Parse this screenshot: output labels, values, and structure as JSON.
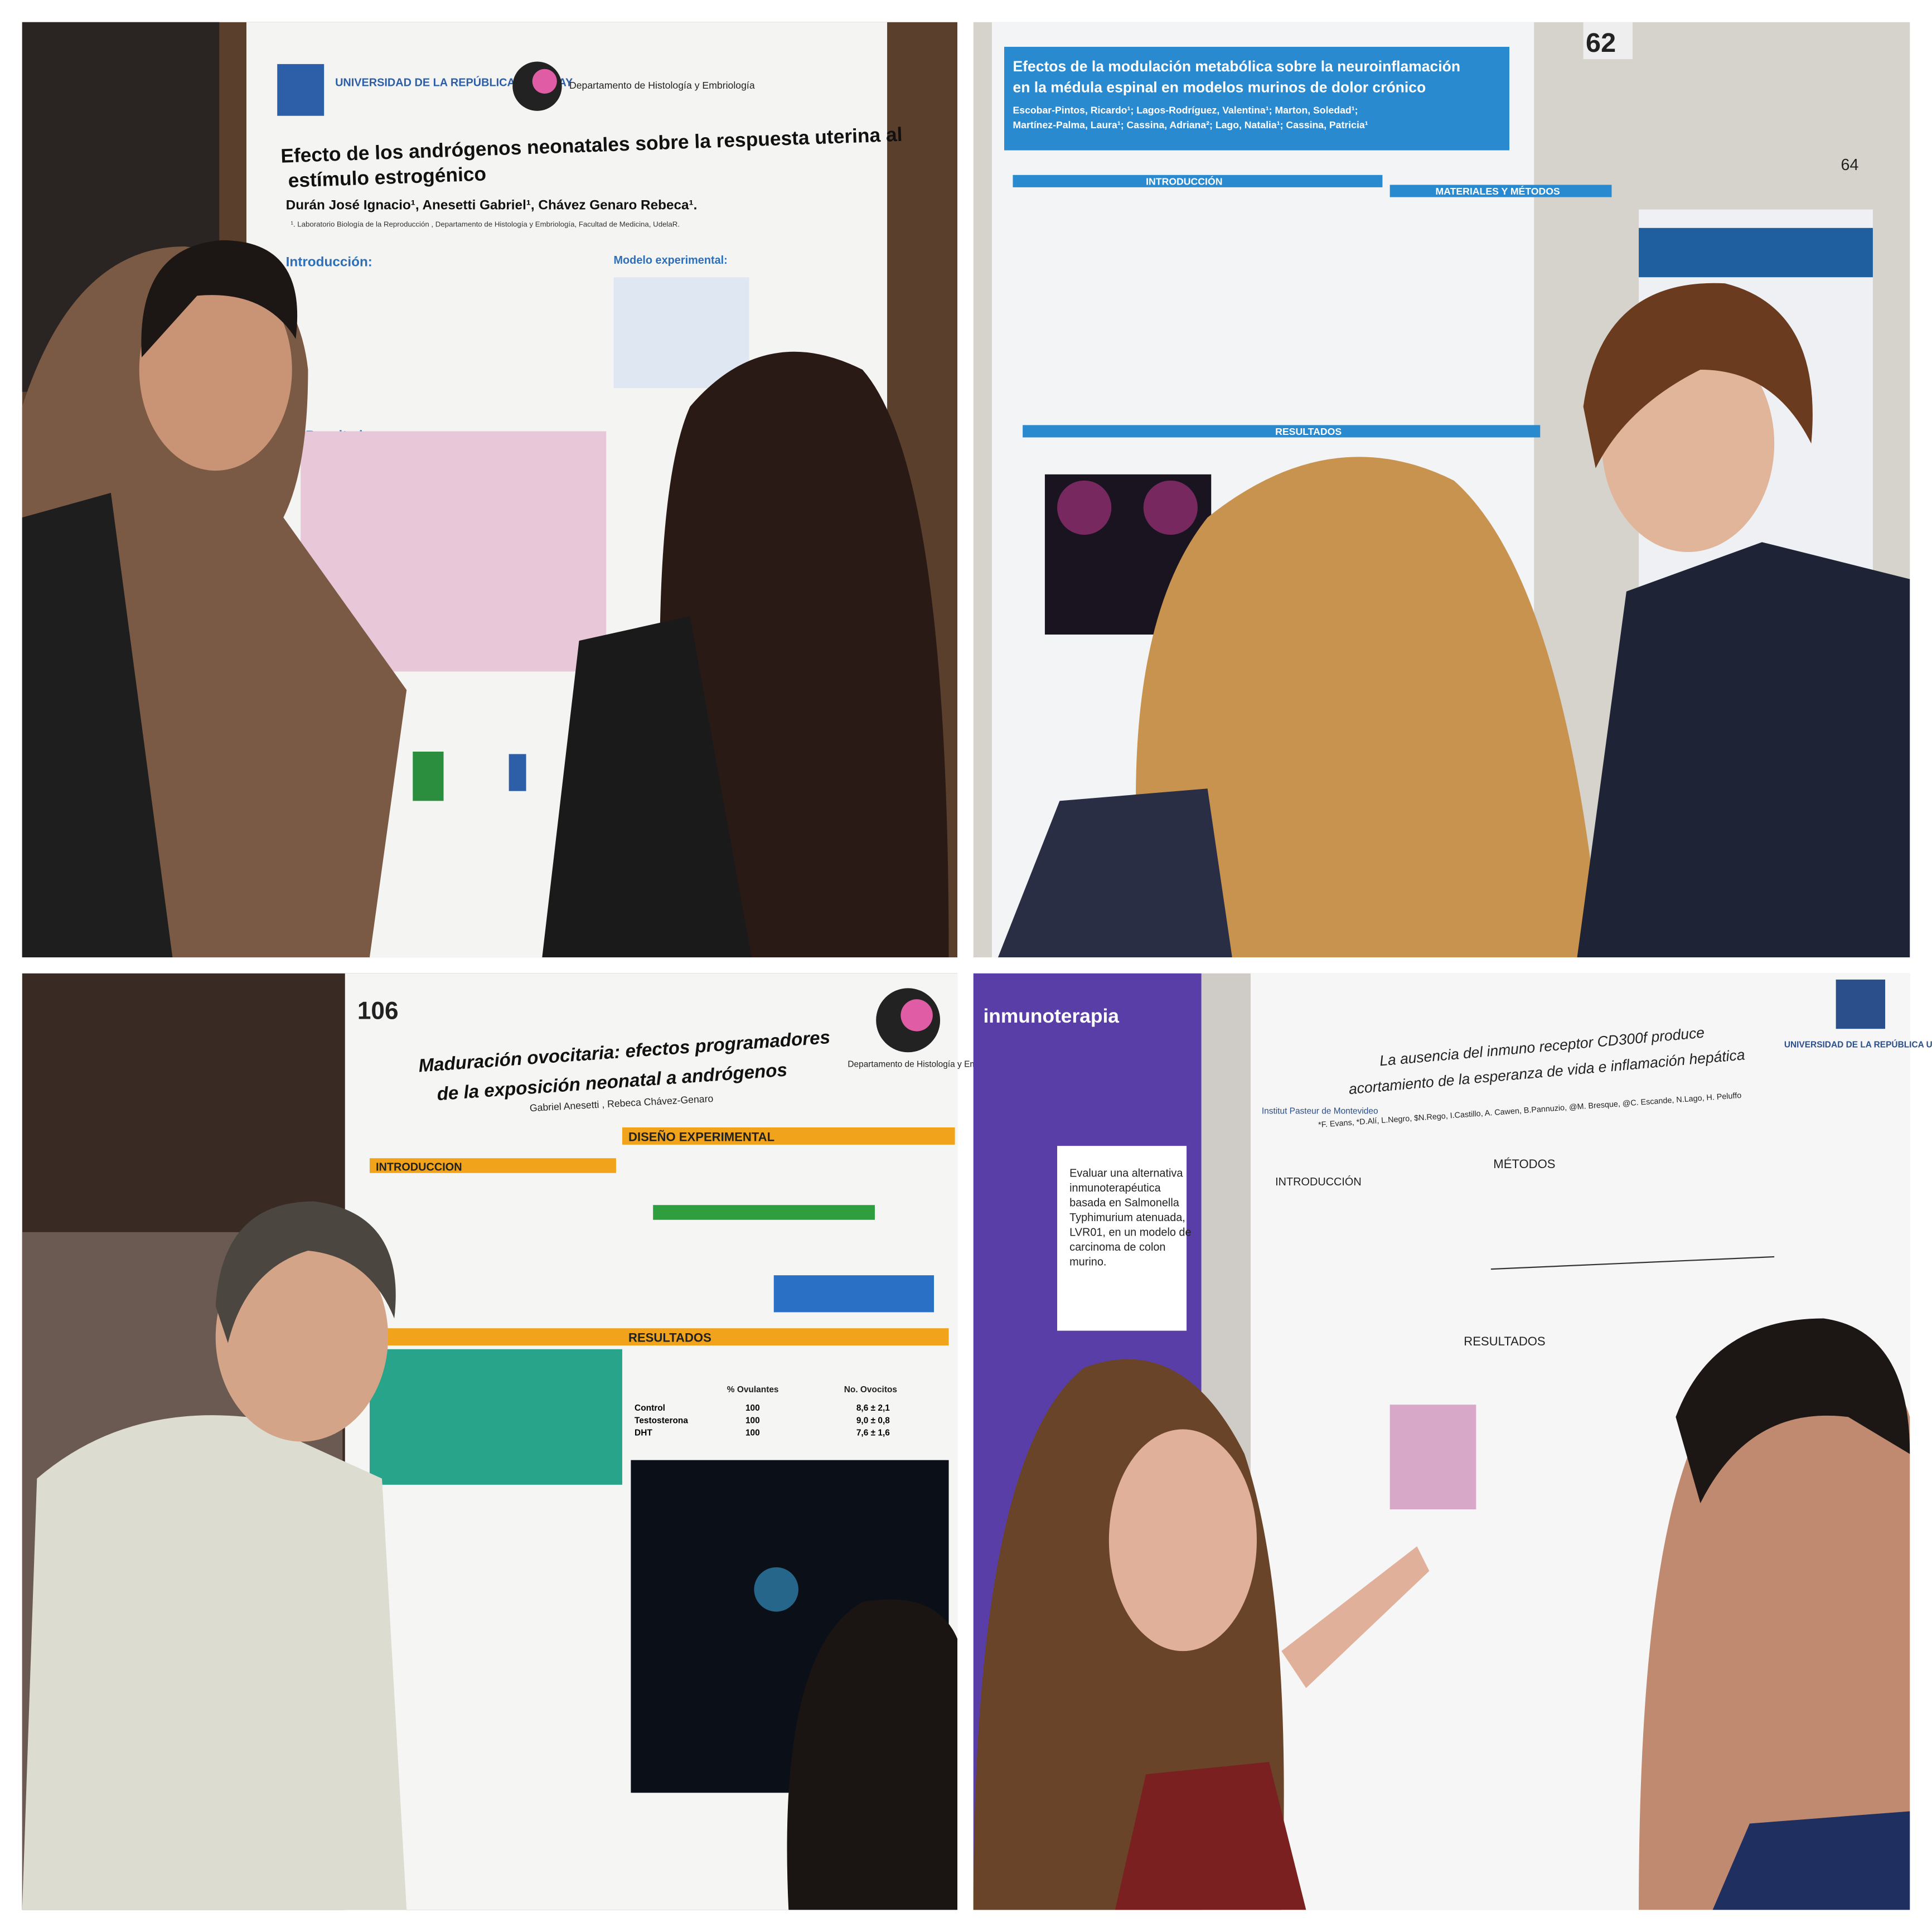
{
  "panels": [
    {
      "logos": [
        "UNIVERSIDAD DE LA REPÚBLICA URUGUAY",
        "Departamento de Histología y Embriología"
      ],
      "title_lines": [
        "Efecto de los andrógenos neonatales sobre la respuesta uterina al",
        "estímulo estrogénico"
      ],
      "authors": "Durán José Ignacio¹, Anesetti Gabriel¹, Chávez Genaro Rebeca¹.",
      "affiliation": "¹. Laboratorio Biología de la Reproducción , Departamento de Histología y Embriología, Facultad de Medicina, UdelaR.",
      "sections": [
        "Introducción:",
        "Modelo experimental:",
        "Resultados:"
      ]
    },
    {
      "numbers": [
        "62",
        "64"
      ],
      "title_lines": [
        "Efectos de la modulación metabólica sobre la neuroinflamación",
        "en la médula espinal en modelos murinos de dolor crónico"
      ],
      "authors_lines": [
        "Escobar-Pintos, Ricardo¹; Lagos-Rodríguez, Valentina¹; Marton, Soledad¹;",
        "Martínez-Palma, Laura¹; Cassina, Adriana²; Lago, Natalia¹; Cassina, Patricia¹"
      ],
      "sections": [
        "INTRODUCCIÓN",
        "MATERIALES Y MÉTODOS",
        "RESULTADOS"
      ]
    },
    {
      "number": "106",
      "title_lines": [
        "Maduración ovocitaria: efectos programadores",
        "de la exposición neonatal a andrógenos"
      ],
      "logo": "Departamento de Histología y Embriología",
      "authors": "Gabriel Anesetti , Rebeca Chávez-Genaro",
      "sections": [
        "INTRODUCCION",
        "DISEÑO EXPERIMENTAL",
        "RESULTADOS"
      ],
      "table": {
        "header": [
          "% Ovulantes",
          "No. Ovocitos"
        ],
        "rows": [
          [
            "Control",
            "100",
            "8,6 ± 2,1"
          ],
          [
            "Testosterona",
            "100",
            "9,0 ± 0,8"
          ],
          [
            "DHT",
            "100",
            "7,6 ± 1,6"
          ]
        ]
      }
    },
    {
      "side_title": "inmunoterapia",
      "side_text_lines": [
        "Evaluar una alternativa",
        "inmunoterapéutica",
        "basada en Salmonella",
        "Typhimurium atenuada,",
        "LVR01, en un modelo de",
        "carcinoma de colon",
        "murino."
      ],
      "title_lines": [
        "La ausencia del inmuno receptor CD300f produce",
        "acortamiento de la esperanza de vida e inflamación hepática"
      ],
      "logos": [
        "Institut Pasteur de Montevideo",
        "UNIVERSIDAD DE LA REPÚBLICA URUGUAY"
      ],
      "authors": "*F. Evans, *D.Alí, L.Negro, $N.Rego, I.Castillo, A. Cawen, B.Pannuzio, @M. Bresque, @C. Escande, N.Lago, H. Peluffo",
      "sections": [
        "INTRODUCCIÓN",
        "MÉTODOS",
        "RESULTADOS"
      ]
    }
  ]
}
